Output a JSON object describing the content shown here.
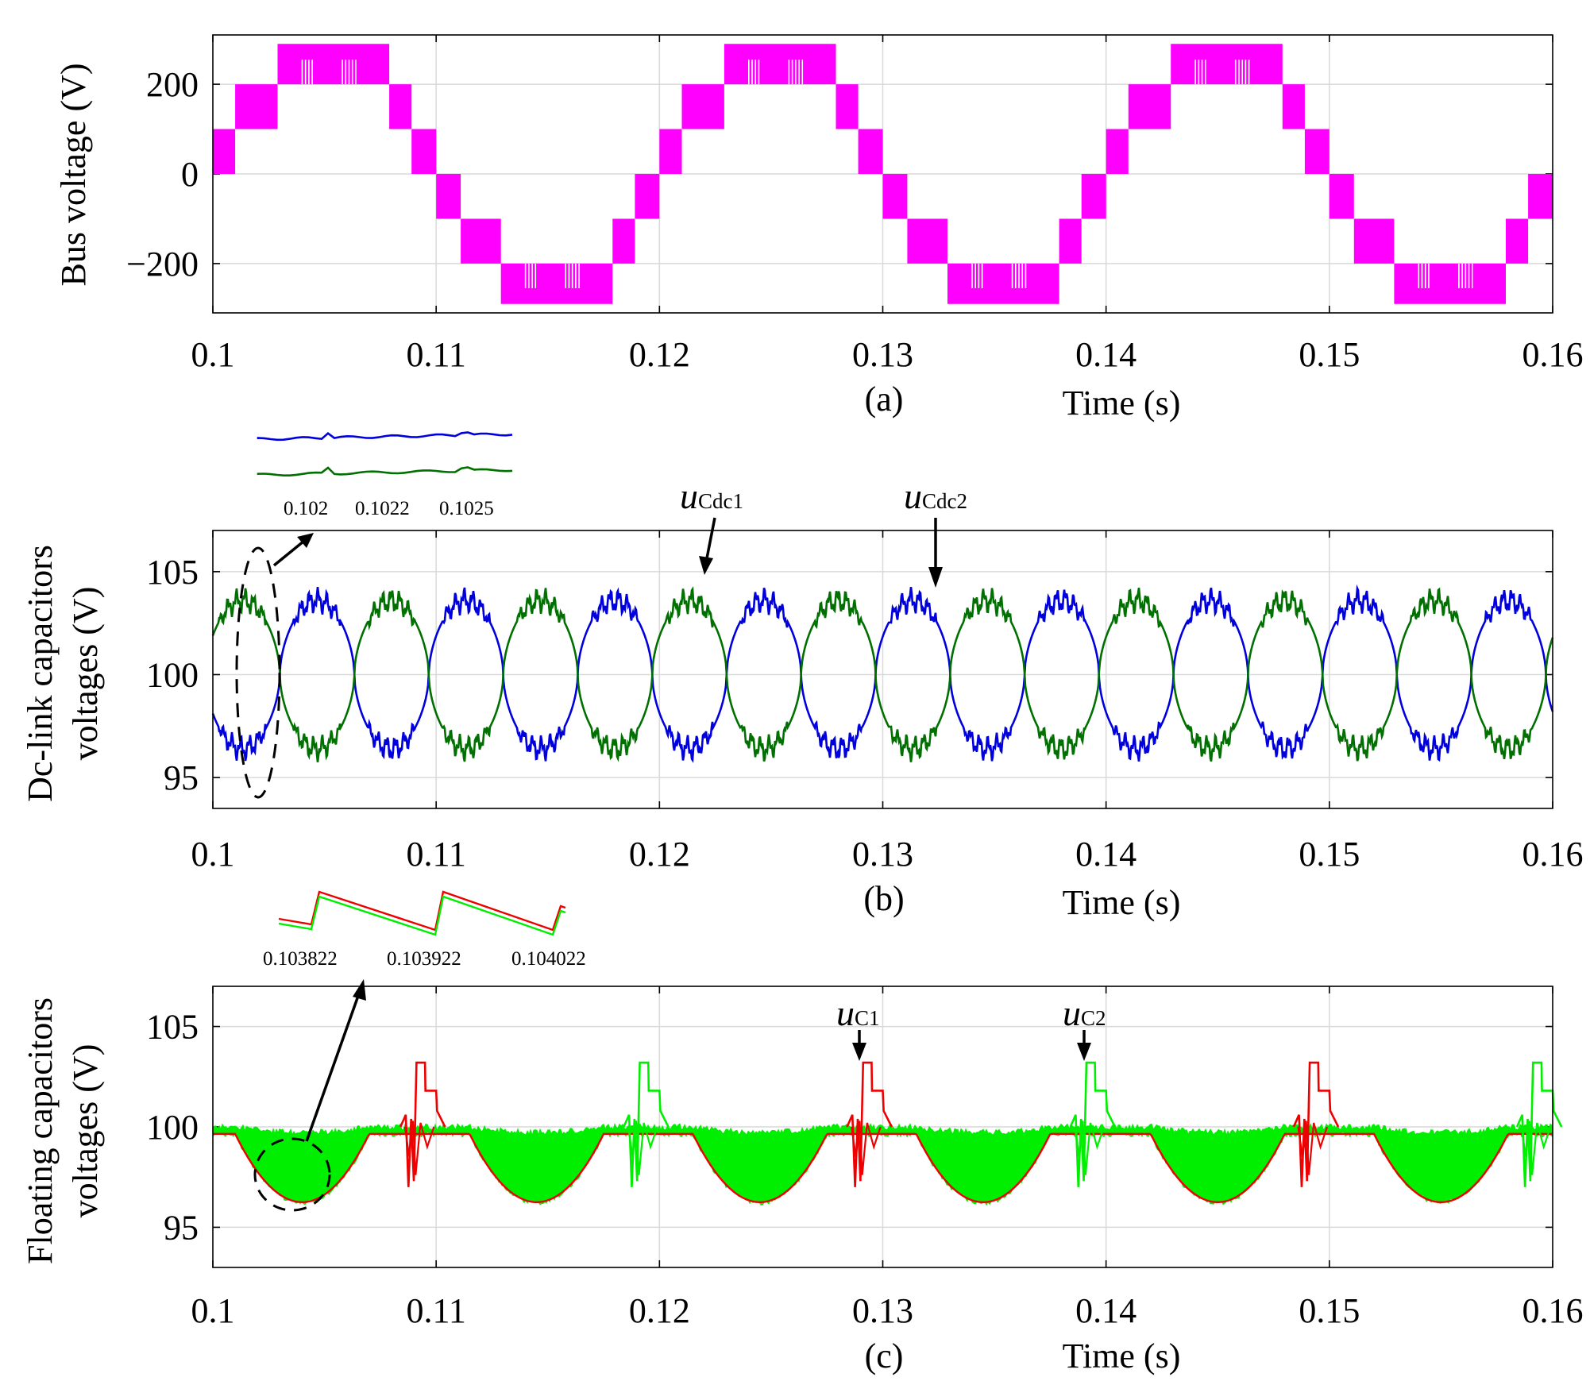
{
  "chart_data": [
    {
      "type": "line",
      "panel_label": "(a)",
      "xlabel": "Time (s)",
      "ylabel": "Bus voltage (V)",
      "xlim": [
        0.1,
        0.16
      ],
      "ylim": [
        -310,
        310
      ],
      "x_ticks": [
        "0.1",
        "0.11",
        "0.12",
        "0.13",
        "0.14",
        "0.15",
        "0.16"
      ],
      "y_ticks": [
        "200",
        "0",
        "−200"
      ],
      "y_tick_values": [
        200,
        0,
        -200
      ],
      "fundamental_frequency_hz": 50,
      "series": [
        {
          "name": "Bus voltage",
          "color": "#ff00ff",
          "kind": "staircase",
          "level_step_v": 100,
          "peak_v": 290,
          "levels": [
            {
              "from": 0.1,
              "to": 0.101,
              "min": 0,
              "max": 100
            },
            {
              "from": 0.101,
              "to": 0.1029,
              "min": 100,
              "max": 200
            },
            {
              "from": 0.1029,
              "to": 0.1079,
              "min": 200,
              "max": 290
            },
            {
              "from": 0.1079,
              "to": 0.1089,
              "min": 100,
              "max": 200
            },
            {
              "from": 0.1089,
              "to": 0.11,
              "min": 0,
              "max": 100
            },
            {
              "from": 0.11,
              "to": 0.1111,
              "min": -100,
              "max": 0
            },
            {
              "from": 0.1111,
              "to": 0.1129,
              "min": -200,
              "max": -100
            },
            {
              "from": 0.1129,
              "to": 0.1179,
              "min": -290,
              "max": -200
            },
            {
              "from": 0.1179,
              "to": 0.1189,
              "min": -200,
              "max": -100
            },
            {
              "from": 0.1189,
              "to": 0.12,
              "min": -100,
              "max": 0
            }
          ]
        }
      ]
    },
    {
      "type": "line",
      "panel_label": "(b)",
      "xlabel": "Time (s)",
      "ylabel": "Dc-link capacitors voltages (V)",
      "ylabel_lines": [
        "Dc-link capacitors",
        "voltages (V)"
      ],
      "xlim": [
        0.1,
        0.16
      ],
      "ylim": [
        93.5,
        107
      ],
      "x_ticks": [
        "0.1",
        "0.11",
        "0.12",
        "0.13",
        "0.14",
        "0.15",
        "0.16"
      ],
      "y_ticks": [
        "105",
        "100",
        "95"
      ],
      "y_tick_values": [
        105,
        100,
        95
      ],
      "series": [
        {
          "name": "uCdc1",
          "label_main": "u",
          "label_sub": "Cdc1",
          "color": "#0000dd",
          "mean": 100,
          "peak_deviation": 4.5,
          "ripple_period_s": 0.00667,
          "first_crossing_s": 0.103
        },
        {
          "name": "uCdc2",
          "label_main": "u",
          "label_sub": "Cdc2",
          "color": "#007000",
          "mean": 100,
          "peak_deviation": 4.5,
          "ripple_period_s": 0.00667,
          "first_crossing_s": 0.103
        }
      ],
      "inset": {
        "tick_labels": [
          "0.102",
          "0.1022",
          "0.1025"
        ]
      }
    },
    {
      "type": "line",
      "panel_label": "(c)",
      "xlabel": "Time (s)",
      "ylabel": "Floating capacitors voltages (V)",
      "ylabel_lines": [
        "Floating capacitors",
        "voltages (V)"
      ],
      "xlim": [
        0.1,
        0.16
      ],
      "ylim": [
        93,
        107
      ],
      "x_ticks": [
        "0.1",
        "0.11",
        "0.12",
        "0.13",
        "0.14",
        "0.15",
        "0.16"
      ],
      "y_ticks": [
        "105",
        "100",
        "95"
      ],
      "y_tick_values": [
        105,
        100,
        95
      ],
      "series": [
        {
          "name": "uC1",
          "label_main": "u",
          "label_sub": "C1",
          "color": "#ee0000",
          "nominal": 100,
          "dip_min": 96.2,
          "spike_max": 103.2
        },
        {
          "name": "uC2",
          "label_main": "u",
          "label_sub": "C2",
          "color": "#00ee00",
          "nominal": 100,
          "dip_min": 96.0,
          "spike_max": 103.3
        }
      ],
      "inset": {
        "tick_labels": [
          "0.103822",
          "0.103922",
          "0.104022"
        ]
      }
    }
  ]
}
